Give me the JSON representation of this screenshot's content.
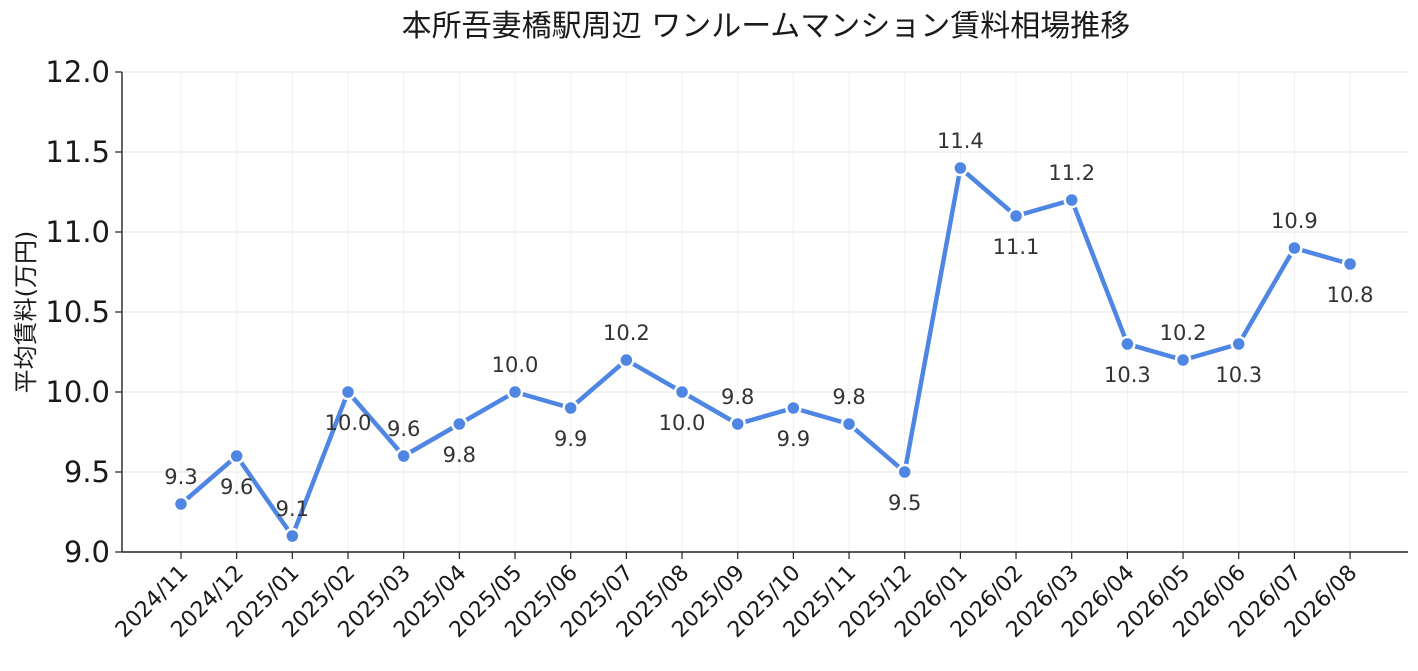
{
  "chart_data": {
    "type": "line",
    "title": "本所吾妻橋駅周辺 ワンルームマンション賃料相場推移",
    "xlabel": "",
    "ylabel": "平均賃料(万円)",
    "ylim": [
      9.0,
      12.0
    ],
    "yticks": [
      "9.0",
      "9.5",
      "10.0",
      "10.5",
      "11.0",
      "11.5",
      "12.0"
    ],
    "grid": true,
    "x": [
      "2024/11",
      "2024/12",
      "2025/01",
      "2025/02",
      "2025/03",
      "2025/04",
      "2025/05",
      "2025/06",
      "2025/07",
      "2025/08",
      "2025/09",
      "2025/10",
      "2025/11",
      "2025/12",
      "2026/01",
      "2026/02",
      "2026/03",
      "2026/04",
      "2026/05",
      "2026/06",
      "2026/07",
      "2026/08"
    ],
    "series": [
      {
        "values": [
          9.3,
          9.6,
          9.1,
          10.0,
          9.6,
          9.8,
          10.0,
          9.9,
          10.2,
          10.0,
          9.8,
          9.9,
          9.8,
          9.5,
          11.4,
          11.1,
          11.2,
          10.3,
          10.2,
          10.3,
          10.9,
          10.8
        ],
        "labels": [
          "9.3",
          "9.6",
          "9.1",
          "10.0",
          "9.6",
          "9.8",
          "10.0",
          "9.9",
          "10.2",
          "10.0",
          "9.8",
          "9.9",
          "9.8",
          "9.5",
          "11.4",
          "11.1",
          "11.2",
          "10.3",
          "10.2",
          "10.3",
          "10.9",
          "10.8"
        ],
        "label_position": [
          "above",
          "below",
          "above",
          "below",
          "above",
          "below",
          "above",
          "below",
          "above",
          "below",
          "above",
          "below",
          "above",
          "below",
          "above",
          "below",
          "above",
          "below",
          "above",
          "below",
          "above",
          "below"
        ],
        "color": "#4f86e3"
      }
    ]
  }
}
